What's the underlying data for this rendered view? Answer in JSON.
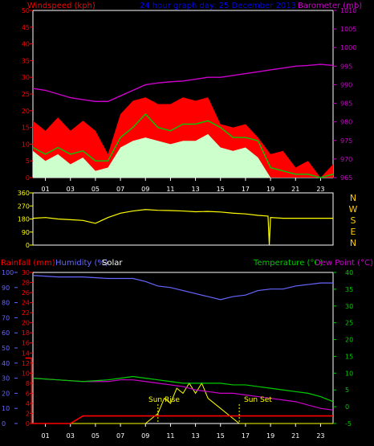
{
  "chart_data": [
    {
      "type": "line",
      "panel": "wind",
      "title": "24 hour graph day: 25 December 2013",
      "left_axis_label": "Windspeed (kph)",
      "right_axis_label": "Barometer (mb)",
      "left_axis": {
        "min": 0,
        "max": 50,
        "ticks": [
          0,
          5,
          10,
          15,
          20,
          25,
          30,
          35,
          40,
          45,
          50
        ]
      },
      "right_axis": {
        "min": 965,
        "max": 1010,
        "ticks": [
          965,
          970,
          975,
          980,
          985,
          990,
          995,
          1000,
          1005,
          1010
        ]
      },
      "x_axis": {
        "min": 0,
        "max": 24,
        "tick_labels": [
          "01",
          "03",
          "05",
          "07",
          "09",
          "11",
          "13",
          "15",
          "17",
          "19",
          "21",
          "23"
        ]
      },
      "colors": {
        "gust": "#ff0000",
        "average": "#00cc00",
        "low": "#ccffcc",
        "barometer": "#cc00cc",
        "title": "#0000ff",
        "axis": "#ff0000",
        "axis_right": "#cc00cc"
      },
      "series": [
        {
          "type": "area",
          "values_x": [
            0,
            1,
            2,
            3,
            4,
            5,
            6,
            7,
            8,
            9,
            10,
            11,
            12,
            13,
            14,
            15,
            16,
            17,
            18,
            19,
            20,
            21,
            22,
            23,
            24
          ],
          "values": [
            17,
            14,
            18,
            14,
            17,
            14,
            7,
            19,
            23,
            24,
            22,
            22,
            24,
            23,
            24,
            16,
            15,
            16,
            12,
            7,
            8,
            3,
            5,
            0,
            4
          ]
        },
        {
          "type": "line",
          "values_x": [
            0,
            1,
            2,
            3,
            4,
            5,
            6,
            7,
            8,
            9,
            10,
            11,
            12,
            13,
            14,
            15,
            16,
            17,
            18,
            19,
            20,
            21,
            22,
            23,
            24
          ],
          "values": [
            9,
            7,
            9,
            7,
            8,
            5,
            5,
            12,
            15,
            19,
            15,
            14,
            16,
            16,
            17,
            15,
            12,
            12,
            11,
            3,
            2,
            1,
            1,
            0,
            1
          ]
        },
        {
          "type": "area",
          "values_x": [
            0,
            1,
            2,
            3,
            4,
            5,
            6,
            7,
            8,
            9,
            10,
            11,
            12,
            13,
            14,
            15,
            16,
            17,
            18,
            19,
            20,
            21,
            22,
            23,
            24
          ],
          "values": [
            8,
            5,
            7,
            4,
            6,
            2,
            3,
            9,
            11,
            12,
            11,
            10,
            11,
            11,
            13,
            9,
            8,
            9,
            6,
            0,
            0,
            0,
            0,
            0,
            0
          ]
        },
        {
          "type": "line",
          "axis": "right",
          "values_x": [
            0,
            1,
            2,
            3,
            4,
            5,
            6,
            7,
            8,
            9,
            10,
            11,
            12,
            13,
            14,
            15,
            16,
            17,
            18,
            19,
            20,
            21,
            22,
            23,
            24
          ],
          "values": [
            989,
            988.5,
            987.5,
            986.5,
            986,
            985.5,
            985.5,
            987,
            988.5,
            990,
            990.5,
            990.8,
            991,
            991.5,
            992,
            992,
            992.5,
            993,
            993.5,
            994,
            994.5,
            995,
            995.2,
            995.5,
            995.2
          ]
        }
      ]
    },
    {
      "type": "line",
      "panel": "wind_direction",
      "left_axis": {
        "min": 0,
        "max": 360,
        "ticks": [
          0,
          90,
          180,
          270,
          360
        ]
      },
      "right_labels": [
        "N",
        "W",
        "S",
        "E",
        "N"
      ],
      "colors": {
        "direction": "#ffff00",
        "compass": "#ffcc00"
      },
      "series": [
        {
          "values_x": [
            0,
            1,
            2,
            3,
            4,
            5,
            6,
            7,
            8,
            9,
            10,
            11,
            12,
            13,
            14,
            15,
            16,
            17,
            18,
            18.8,
            18.9,
            19,
            20,
            21,
            22,
            23,
            24
          ],
          "values": [
            185,
            190,
            180,
            175,
            170,
            150,
            190,
            220,
            235,
            245,
            240,
            238,
            235,
            230,
            232,
            228,
            220,
            215,
            205,
            200,
            0,
            190,
            185,
            185,
            185,
            185,
            185
          ]
        }
      ]
    },
    {
      "type": "line",
      "panel": "weather",
      "left_axis_labels": [
        "Rainfall (mm)",
        "Humidity (%)",
        "Solar"
      ],
      "right_axis_labels": [
        "Temperature (°C)",
        "Dew Point (°C)"
      ],
      "rainfall_axis": {
        "min": 0,
        "max": 30,
        "ticks": [
          0,
          2,
          4,
          6,
          8,
          10,
          12,
          14,
          16,
          18,
          20,
          22,
          24,
          26,
          28,
          30
        ]
      },
      "humidity_axis": {
        "min": 0,
        "max": 100,
        "ticks": [
          0,
          10,
          20,
          30,
          40,
          50,
          60,
          70,
          80,
          90,
          100
        ]
      },
      "temperature_axis": {
        "min": -5,
        "max": 40,
        "ticks": [
          -5,
          0,
          5,
          10,
          15,
          20,
          25,
          30,
          35,
          40
        ]
      },
      "x_axis": {
        "min": 0,
        "max": 24,
        "tick_labels": [
          "01",
          "03",
          "05",
          "07",
          "09",
          "11",
          "13",
          "15",
          "17",
          "19",
          "21",
          "23"
        ]
      },
      "annotations": [
        {
          "text": "Sun Rise",
          "x": 10
        },
        {
          "text": "Sun Set",
          "x": 16.5
        }
      ],
      "colors": {
        "rainfall": "#ff0000",
        "humidity": "#6666ff",
        "temperature": "#00cc00",
        "dewpoint": "#cc00cc",
        "solar": "#ffff00",
        "label_rain": "#ff0000",
        "label_hum": "#6666ff",
        "label_temp": "#00cc00"
      },
      "series": [
        {
          "name": "Rainfall",
          "values_x": [
            -0.6,
            -0.1,
            -0.1,
            0,
            3,
            4,
            5,
            24
          ],
          "values": [
            13,
            13,
            0,
            0,
            0,
            1.5,
            1.5,
            1.5
          ]
        },
        {
          "name": "Humidity",
          "values_x": [
            0,
            2,
            4,
            6,
            7,
            8,
            9,
            10,
            11,
            12,
            13,
            14,
            15,
            16,
            17,
            18,
            19,
            20,
            21,
            22,
            23,
            24
          ],
          "values": [
            98,
            97,
            97,
            96,
            96,
            96,
            94,
            91,
            90,
            88,
            86,
            84,
            82,
            84,
            85,
            88,
            89,
            89,
            91,
            92,
            93,
            93
          ]
        },
        {
          "name": "Temperature",
          "values_x": [
            0,
            2,
            4,
            6,
            7,
            8,
            9,
            10,
            11,
            12,
            13,
            14,
            15,
            16,
            17,
            18,
            19,
            20,
            21,
            22,
            23,
            24
          ],
          "values": [
            8.5,
            8,
            7.5,
            8,
            8.5,
            9,
            8.5,
            8,
            7.5,
            7,
            7,
            7,
            7,
            6.5,
            6.5,
            6,
            5.5,
            5,
            4.5,
            4,
            3,
            1.5
          ]
        },
        {
          "name": "Dew Point",
          "values_x": [
            0,
            2,
            4,
            6,
            7,
            8,
            9,
            10,
            11,
            12,
            13,
            14,
            15,
            16,
            17,
            18,
            19,
            20,
            21,
            22,
            23,
            24
          ],
          "values": [
            8.5,
            8,
            7.5,
            7.5,
            8,
            8,
            7.5,
            7,
            6.5,
            6,
            5,
            4.5,
            4,
            4,
            3.5,
            3,
            2.5,
            2,
            1.5,
            0.5,
            -0.5,
            -1
          ]
        },
        {
          "name": "Solar",
          "values_x": [
            0,
            9,
            10,
            10.5,
            11,
            11.5,
            12,
            12.5,
            13,
            13.5,
            14,
            15,
            16,
            16.5,
            17,
            24
          ],
          "values": [
            0,
            0,
            2,
            5,
            4,
            7,
            6,
            8,
            6,
            8,
            5,
            3,
            1,
            0,
            0,
            0
          ]
        }
      ]
    }
  ]
}
